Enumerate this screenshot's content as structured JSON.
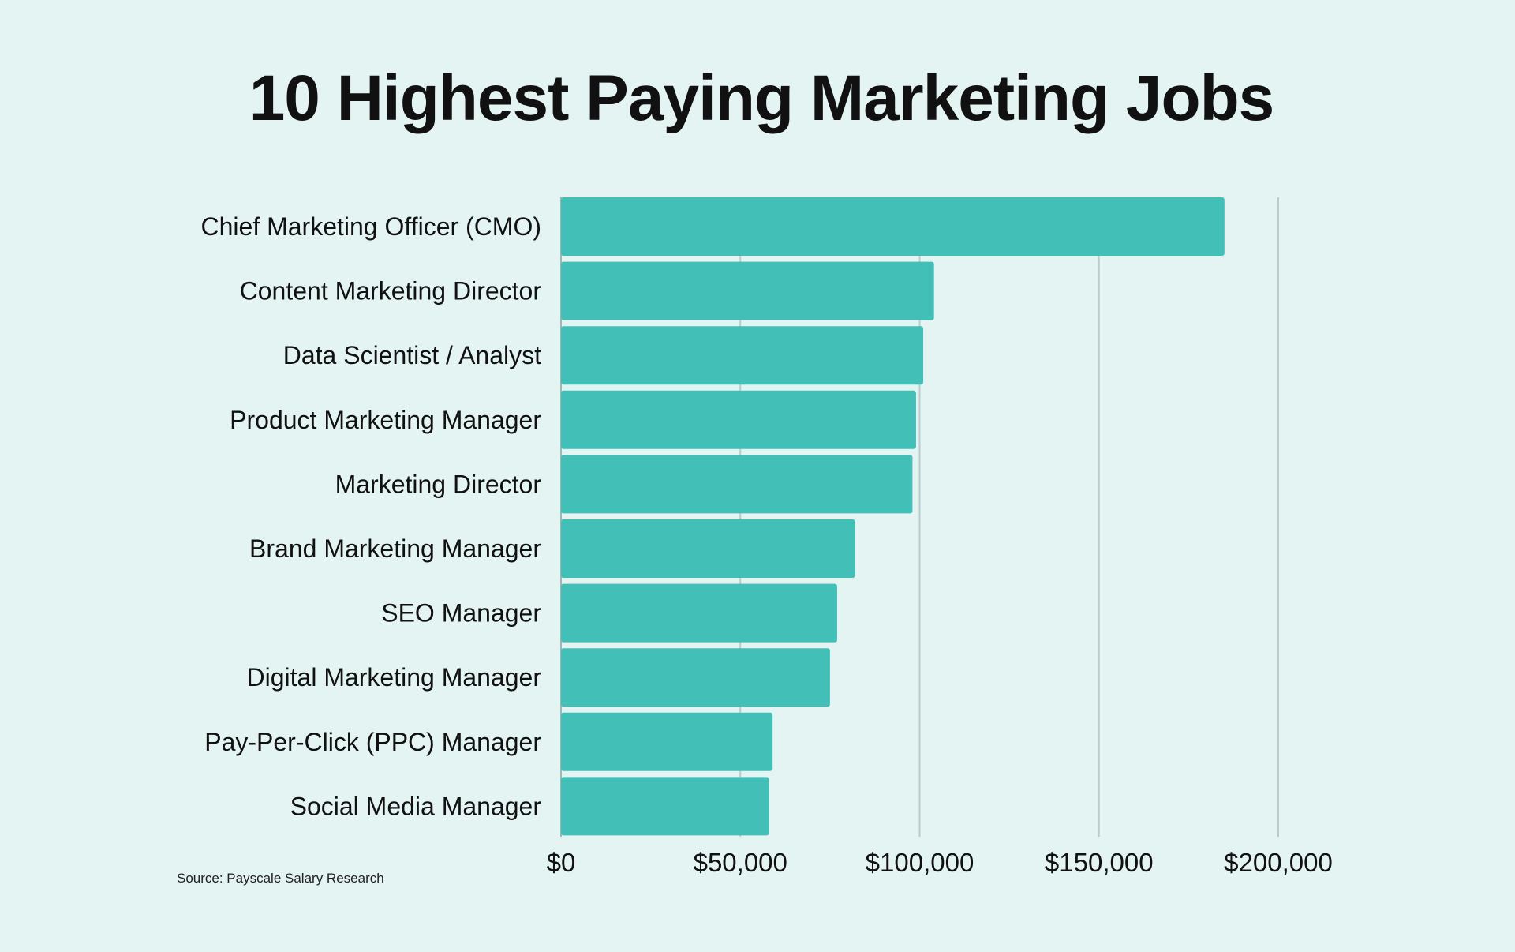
{
  "chart_data": {
    "type": "bar",
    "orientation": "horizontal",
    "title": "10 Highest Paying Marketing Jobs",
    "categories": [
      "Chief Marketing Officer (CMO)",
      "Content Marketing Director",
      "Data Scientist / Analyst",
      "Product Marketing Manager",
      "Marketing Director",
      "Brand Marketing Manager",
      "SEO Manager",
      "Digital Marketing Manager",
      "Pay-Per-Click (PPC) Manager",
      "Social Media Manager"
    ],
    "values": [
      185000,
      104000,
      101000,
      99000,
      98000,
      82000,
      77000,
      75000,
      59000,
      58000
    ],
    "xlim": [
      0,
      200000
    ],
    "xticks": [
      0,
      50000,
      100000,
      150000,
      200000
    ],
    "xtick_labels": [
      "$0",
      "$50,000",
      "$100,000",
      "$150,000",
      "$200,000"
    ],
    "grid": "vertical",
    "bar_color": "#42bfb6",
    "background": "#e3f4f3",
    "source": "Source: Payscale Salary Research"
  }
}
